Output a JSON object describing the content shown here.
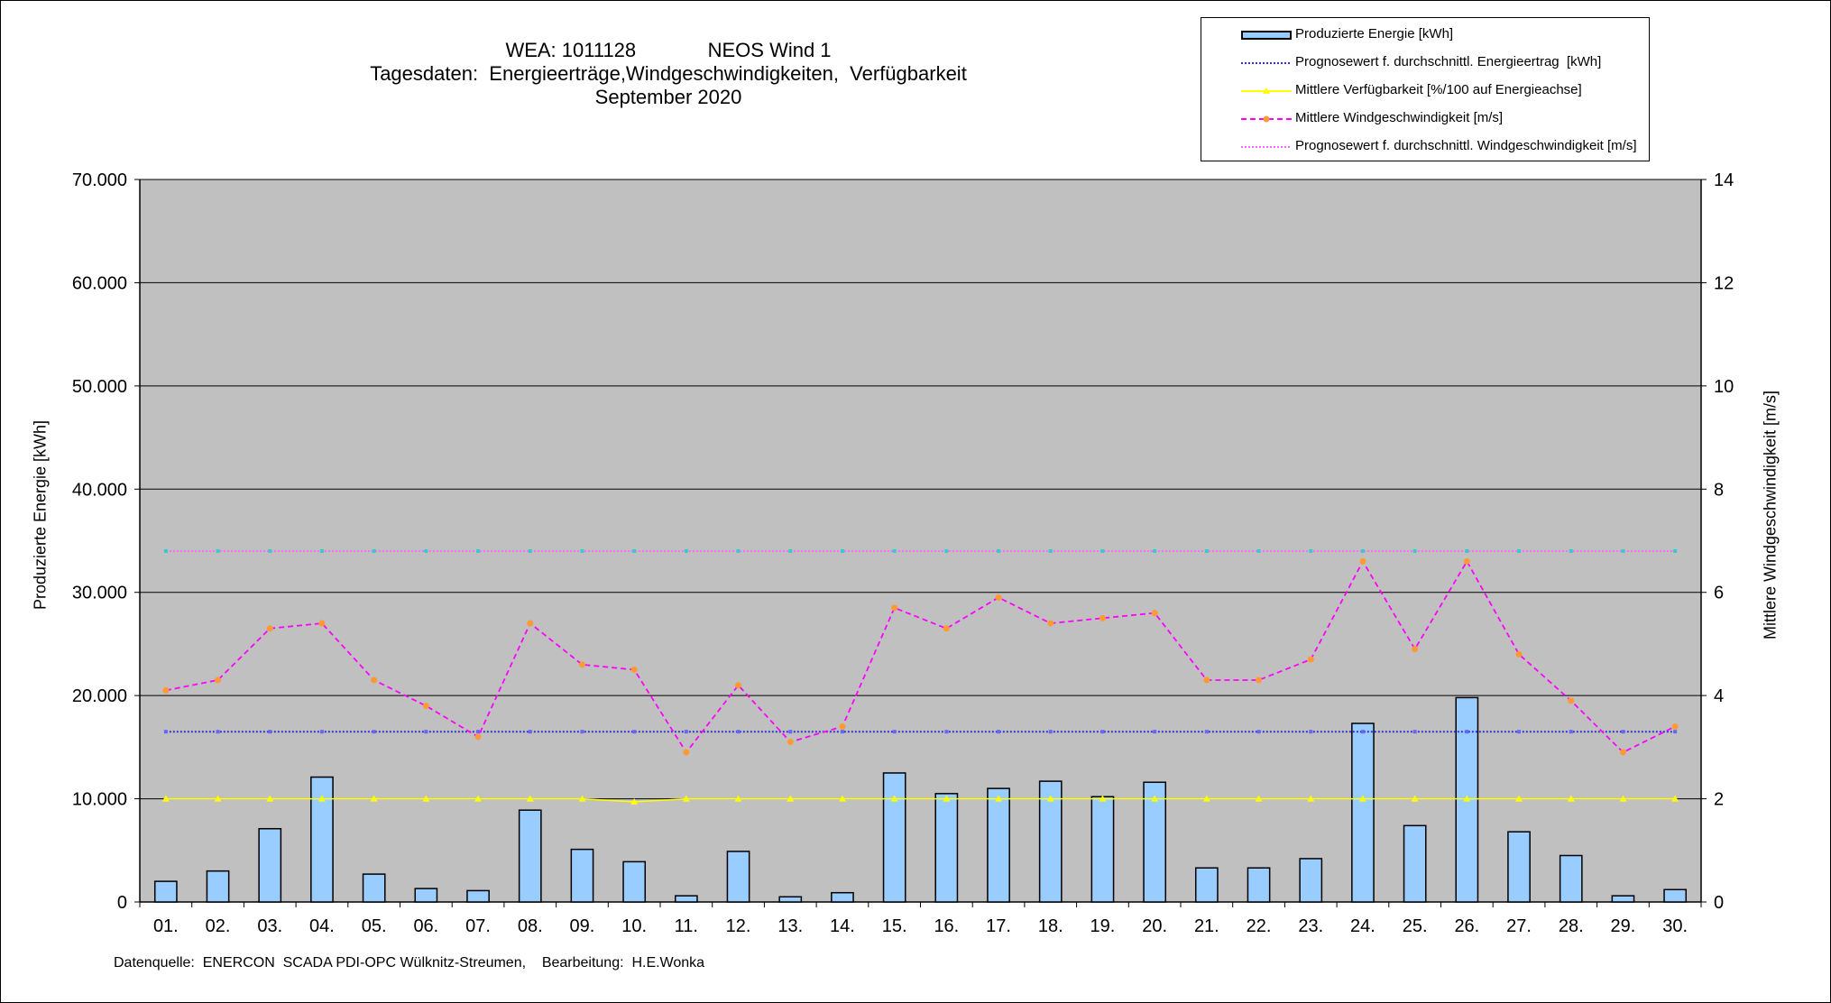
{
  "chart_data": {
    "type": "bar",
    "title_lines": [
      "WEA: 1011128             NEOS Wind 1",
      "Tagesdaten:  Energieerträge,Windgeschwindigkeiten,  Verfügbarkeit",
      "September 2020"
    ],
    "ylabel_left": "Produzierte Energie [kWh]",
    "ylabel_right": "Mittlere Windgeschwindigkeit [m/s]",
    "footer": "Datenquelle:  ENERCON  SCADA PDI-OPC Wülknitz-Streumen,    Bearbeitung:  H.E.Wonka",
    "categories": [
      "01.",
      "02.",
      "03.",
      "04.",
      "05.",
      "06.",
      "07.",
      "08.",
      "09.",
      "10.",
      "11.",
      "12.",
      "13.",
      "14.",
      "15.",
      "16.",
      "17.",
      "18.",
      "19.",
      "20.",
      "21.",
      "22.",
      "23.",
      "24.",
      "25.",
      "26.",
      "27.",
      "28.",
      "29.",
      "30."
    ],
    "y_left": {
      "min": 0,
      "max": 70000,
      "step": 10000,
      "tick_labels": [
        "0",
        "10.000",
        "20.000",
        "30.000",
        "40.000",
        "50.000",
        "60.000",
        "70.000"
      ]
    },
    "y_right": {
      "min": 0,
      "max": 14,
      "step": 2,
      "tick_labels": [
        "0",
        "2",
        "4",
        "6",
        "8",
        "10",
        "12",
        "14"
      ]
    },
    "grid": true,
    "legend_position": "top-right",
    "colors": {
      "plot_background": "#C0C0C0",
      "bar_fill": "#99CCFF",
      "energy_forecast": "#3333CC",
      "availability": "#FFFF00",
      "wind_speed": "#FF00FF",
      "wind_marker": "#FF9933",
      "wind_forecast": "#FF66FF",
      "wind_forecast_marker": "#33CCCC"
    },
    "series": [
      {
        "name": "Produzierte Energie [kWh]",
        "kind": "bar",
        "axis": "left",
        "values": [
          2000,
          3000,
          7100,
          12100,
          2700,
          1300,
          1100,
          8900,
          5100,
          3900,
          600,
          4900,
          500,
          900,
          12500,
          10500,
          11000,
          11700,
          10200,
          11600,
          3300,
          3300,
          4200,
          17300,
          7400,
          19800,
          6800,
          4500,
          600,
          1200
        ]
      },
      {
        "name": "Prognosewert f. durchschnittl. Energieertrag  [kWh]",
        "kind": "line",
        "axis": "left",
        "values": [
          16500,
          16500,
          16500,
          16500,
          16500,
          16500,
          16500,
          16500,
          16500,
          16500,
          16500,
          16500,
          16500,
          16500,
          16500,
          16500,
          16500,
          16500,
          16500,
          16500,
          16500,
          16500,
          16500,
          16500,
          16500,
          16500,
          16500,
          16500,
          16500,
          16500
        ]
      },
      {
        "name": "Mittlere Verfügbarkeit [%/100 auf Energieachse]",
        "kind": "line",
        "axis": "left",
        "values": [
          10000,
          10000,
          10000,
          10000,
          10000,
          10000,
          10000,
          10000,
          10000,
          9700,
          10000,
          10000,
          10000,
          10000,
          10000,
          10000,
          10000,
          10000,
          10000,
          10000,
          10000,
          10000,
          10000,
          10000,
          10000,
          10000,
          10000,
          10000,
          10000,
          10000
        ]
      },
      {
        "name": "Mittlere Windgeschwindigkeit [m/s]",
        "kind": "line",
        "axis": "right",
        "values": [
          4.1,
          4.3,
          5.3,
          5.4,
          4.3,
          3.8,
          3.2,
          5.4,
          4.6,
          4.5,
          2.9,
          4.2,
          3.1,
          3.4,
          5.7,
          5.3,
          5.9,
          5.4,
          5.5,
          5.6,
          4.3,
          4.3,
          4.7,
          6.6,
          4.9,
          6.6,
          4.8,
          3.9,
          2.9,
          3.4
        ]
      },
      {
        "name": "Prognosewert f. durchschnittl. Windgeschwindigkeit [m/s]",
        "kind": "line",
        "axis": "right",
        "values": [
          6.8,
          6.8,
          6.8,
          6.8,
          6.8,
          6.8,
          6.8,
          6.8,
          6.8,
          6.8,
          6.8,
          6.8,
          6.8,
          6.8,
          6.8,
          6.8,
          6.8,
          6.8,
          6.8,
          6.8,
          6.8,
          6.8,
          6.8,
          6.8,
          6.8,
          6.8,
          6.8,
          6.8,
          6.8,
          6.8
        ]
      }
    ]
  }
}
